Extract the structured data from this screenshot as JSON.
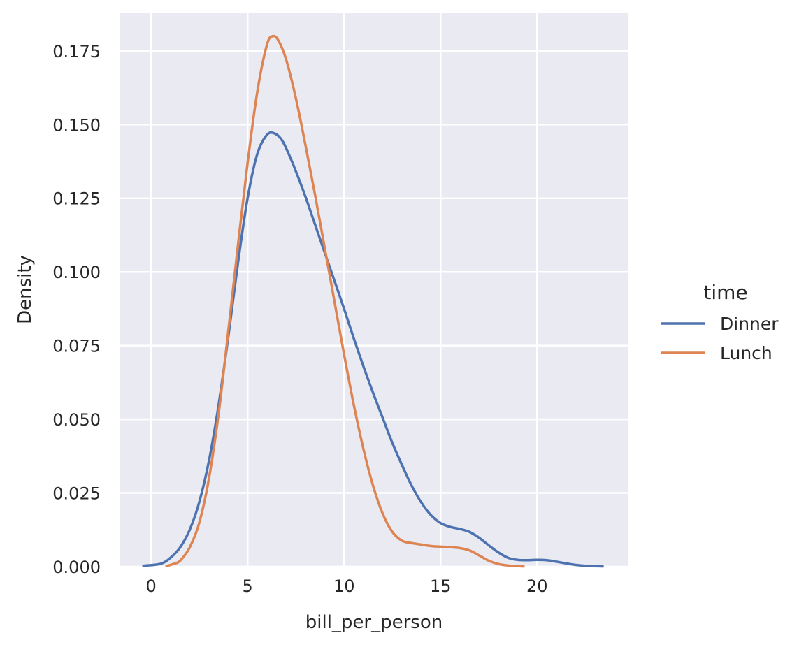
{
  "chart_data": {
    "type": "line",
    "title": "",
    "xlabel": "bill_per_person",
    "ylabel": "Density",
    "xlim": [
      -1.6,
      24.7
    ],
    "ylim": [
      0,
      0.188
    ],
    "x_ticks": [
      0,
      5,
      10,
      15,
      20
    ],
    "x_tick_labels": [
      "0",
      "5",
      "10",
      "15",
      "20"
    ],
    "y_ticks": [
      0,
      0.025,
      0.05,
      0.075,
      0.1,
      0.125,
      0.15,
      0.175
    ],
    "y_tick_labels": [
      "0.000",
      "0.025",
      "0.050",
      "0.075",
      "0.100",
      "0.125",
      "0.150",
      "0.175"
    ],
    "grid": true,
    "legend": {
      "title": "time",
      "placement": "right"
    },
    "series": [
      {
        "name": "Dinner",
        "color": "#4c72b0",
        "x": [
          -0.4,
          0.5,
          1.0,
          1.5,
          2.0,
          2.5,
          3.0,
          3.5,
          4.0,
          4.5,
          5.0,
          5.5,
          6.0,
          6.4,
          6.8,
          7.2,
          7.6,
          8.0,
          8.5,
          9.0,
          9.5,
          10.0,
          10.5,
          11.0,
          11.5,
          12.0,
          12.5,
          13.0,
          13.5,
          14.0,
          14.5,
          15.0,
          15.5,
          16.0,
          16.5,
          17.0,
          17.5,
          18.0,
          18.5,
          19.0,
          19.5,
          20.0,
          20.5,
          21.0,
          21.5,
          22.0,
          22.5,
          23.4
        ],
        "y": [
          0.0003,
          0.001,
          0.003,
          0.0065,
          0.0125,
          0.022,
          0.036,
          0.055,
          0.078,
          0.103,
          0.125,
          0.14,
          0.1465,
          0.147,
          0.1445,
          0.139,
          0.1325,
          0.1255,
          0.116,
          0.1065,
          0.097,
          0.0875,
          0.0775,
          0.068,
          0.059,
          0.0505,
          0.042,
          0.0345,
          0.0275,
          0.0218,
          0.0175,
          0.0148,
          0.0135,
          0.0128,
          0.0118,
          0.0098,
          0.0072,
          0.0048,
          0.003,
          0.0023,
          0.0022,
          0.0023,
          0.0022,
          0.0017,
          0.0011,
          0.0006,
          0.0003,
          0.0001
        ]
      },
      {
        "name": "Lunch",
        "color": "#dd8452",
        "x": [
          0.8,
          1.2,
          1.5,
          2.0,
          2.5,
          3.0,
          3.5,
          4.0,
          4.5,
          5.0,
          5.5,
          6.0,
          6.3,
          6.6,
          7.0,
          7.5,
          8.0,
          8.5,
          9.0,
          9.5,
          10.0,
          10.5,
          11.0,
          11.5,
          12.0,
          12.5,
          13.0,
          13.5,
          14.0,
          14.5,
          15.0,
          15.5,
          16.0,
          16.5,
          17.0,
          17.5,
          18.0,
          18.5,
          19.3
        ],
        "y": [
          0.0002,
          0.001,
          0.002,
          0.0065,
          0.015,
          0.03,
          0.052,
          0.08,
          0.109,
          0.137,
          0.161,
          0.177,
          0.18,
          0.1785,
          0.172,
          0.159,
          0.143,
          0.126,
          0.108,
          0.09,
          0.072,
          0.055,
          0.04,
          0.0275,
          0.018,
          0.0118,
          0.0088,
          0.008,
          0.0075,
          0.007,
          0.0068,
          0.0066,
          0.0063,
          0.0055,
          0.0038,
          0.002,
          0.0009,
          0.0004,
          0.0001
        ]
      }
    ]
  }
}
